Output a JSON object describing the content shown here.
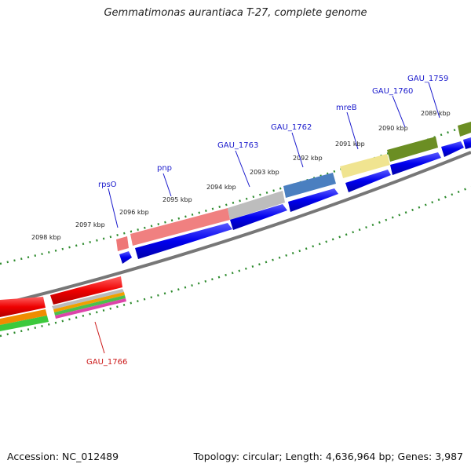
{
  "title": "Gemmatimonas aurantiaca T-27, complete genome",
  "footer": {
    "accession": "Accession: NC_012489",
    "topology": "Topology: circular; Length: 4,636,964 bp; Genes: 3,987"
  },
  "ruler_labels": [
    "2098 kbp",
    "2097 kbp",
    "2096 kbp",
    "2095 kbp",
    "2094 kbp",
    "2093 kbp",
    "2092 kbp",
    "2091 kbp",
    "2090 kbp",
    "2089 kbp"
  ],
  "gene_labels": [
    {
      "text": "rpsO",
      "color": "#1a1acc"
    },
    {
      "text": "pnp",
      "color": "#1a1acc"
    },
    {
      "text": "GAU_1763",
      "color": "#1a1acc"
    },
    {
      "text": "GAU_1762",
      "color": "#1a1acc"
    },
    {
      "text": "mreB",
      "color": "#1a1acc"
    },
    {
      "text": "GAU_1760",
      "color": "#1a1acc"
    },
    {
      "text": "GAU_1759",
      "color": "#1a1acc"
    },
    {
      "text": "GAU_1766",
      "color": "#cc1a1a"
    }
  ],
  "colors": {
    "blue_cds": "#0000ee",
    "red_cds": "#ee0000",
    "backbone": "#777777",
    "tick": "#2e8b2e"
  }
}
